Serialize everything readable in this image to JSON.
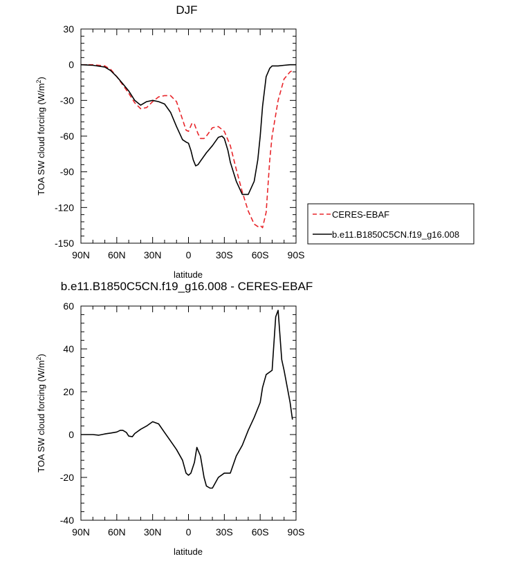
{
  "chart_data": [
    {
      "type": "line",
      "title": "DJF",
      "xlabel": "latitude",
      "ylabel": "TOA SW cloud forcing (W/m",
      "ylabel_sup": "2",
      "ylabel_close": ")",
      "xlim": [
        90,
        -90
      ],
      "ylim": [
        -150,
        30
      ],
      "x_ticks": [
        90,
        60,
        30,
        0,
        -30,
        -60,
        -90
      ],
      "x_tick_labels": [
        "90N",
        "60N",
        "30N",
        "0",
        "30S",
        "60S",
        "90S"
      ],
      "y_ticks": [
        30,
        0,
        -30,
        -60,
        -90,
        -120,
        -150
      ],
      "y_tick_labels": [
        "30",
        "0",
        "-30",
        "-60",
        "-90",
        "-120",
        "-150"
      ],
      "legend": {
        "placement": "right",
        "entries": [
          "CERES-EBAF",
          "b.e11.B1850C5CN.f19_g16.008"
        ]
      },
      "series": [
        {
          "name": "CERES-EBAF",
          "color": "#e8252a",
          "dash": "dashed",
          "x": [
            90,
            80,
            70,
            65,
            60,
            55,
            50,
            45,
            40,
            35,
            30,
            25,
            20,
            15,
            10,
            5,
            2,
            0,
            -3,
            -5,
            -8,
            -10,
            -13,
            -15,
            -20,
            -25,
            -30,
            -35,
            -40,
            -45,
            -50,
            -55,
            -58,
            -60,
            -62,
            -65,
            -68,
            -70,
            -75,
            -80,
            -85,
            -87
          ],
          "values": [
            0,
            0,
            -1,
            -4,
            -10,
            -17,
            -24,
            -32,
            -37,
            -36,
            -31,
            -27,
            -26,
            -26,
            -31,
            -46,
            -55,
            -56,
            -49,
            -50,
            -58,
            -62,
            -62,
            -60,
            -53,
            -52,
            -56,
            -68,
            -88,
            -107,
            -123,
            -134,
            -136,
            -135,
            -137,
            -124,
            -80,
            -60,
            -30,
            -12,
            -6,
            -5
          ]
        },
        {
          "name": "b.e11.B1850C5CN.f19_g16.008",
          "color": "#000000",
          "dash": "solid",
          "x": [
            90,
            80,
            70,
            65,
            60,
            55,
            50,
            45,
            40,
            35,
            30,
            25,
            20,
            15,
            10,
            5,
            2,
            0,
            -2,
            -4,
            -6,
            -8,
            -10,
            -15,
            -20,
            -25,
            -28,
            -30,
            -33,
            -35,
            -40,
            -45,
            -50,
            -55,
            -58,
            -60,
            -62,
            -65,
            -68,
            -70,
            -75,
            -80,
            -85,
            -90
          ],
          "values": [
            0,
            -0.5,
            -2,
            -5,
            -10,
            -16,
            -22,
            -30,
            -34,
            -31,
            -30,
            -31,
            -33,
            -40,
            -52,
            -63,
            -65,
            -66,
            -72,
            -80,
            -85,
            -84,
            -81,
            -74,
            -68,
            -61,
            -60,
            -62,
            -72,
            -82,
            -98,
            -109,
            -109,
            -98,
            -80,
            -60,
            -35,
            -10,
            -3,
            -1,
            -1,
            -0.5,
            0,
            0
          ]
        }
      ]
    },
    {
      "type": "line",
      "title": "b.e11.B1850C5CN.f19_g16.008 - CERES-EBAF",
      "xlabel": "latitude",
      "ylabel": "TOA SW cloud forcing (W/m",
      "ylabel_sup": "2",
      "ylabel_close": ")",
      "xlim": [
        90,
        -90
      ],
      "ylim": [
        -40,
        60
      ],
      "x_ticks": [
        90,
        60,
        30,
        0,
        -30,
        -60,
        -90
      ],
      "x_tick_labels": [
        "90N",
        "60N",
        "30N",
        "0",
        "30S",
        "60S",
        "90S"
      ],
      "y_ticks": [
        60,
        40,
        20,
        0,
        -20,
        -40
      ],
      "y_tick_labels": [
        "60",
        "40",
        "20",
        "0",
        "-20",
        "-40"
      ],
      "series": [
        {
          "color": "#000000",
          "dash": "solid",
          "x": [
            90,
            80,
            75,
            70,
            65,
            60,
            57,
            55,
            52,
            50,
            47,
            45,
            40,
            35,
            32,
            30,
            25,
            20,
            15,
            10,
            5,
            2,
            0,
            -2,
            -5,
            -7,
            -10,
            -13,
            -15,
            -18,
            -20,
            -25,
            -30,
            -35,
            -40,
            -45,
            -50,
            -55,
            -60,
            -62,
            -65,
            -70,
            -73,
            -75,
            -78,
            -80,
            -85,
            -87
          ],
          "values": [
            0,
            0,
            -0.3,
            0.3,
            0.7,
            1.2,
            2,
            2,
            1,
            -0.7,
            -1,
            0.5,
            2.5,
            4,
            5.2,
            6,
            5,
            1,
            -3,
            -7,
            -12,
            -18,
            -19,
            -18,
            -13,
            -6,
            -10,
            -20,
            -24,
            -25,
            -25,
            -20,
            -18,
            -18,
            -10,
            -5,
            2,
            8,
            15,
            22,
            28,
            30,
            55,
            58,
            35,
            30,
            15,
            7
          ]
        }
      ]
    }
  ]
}
